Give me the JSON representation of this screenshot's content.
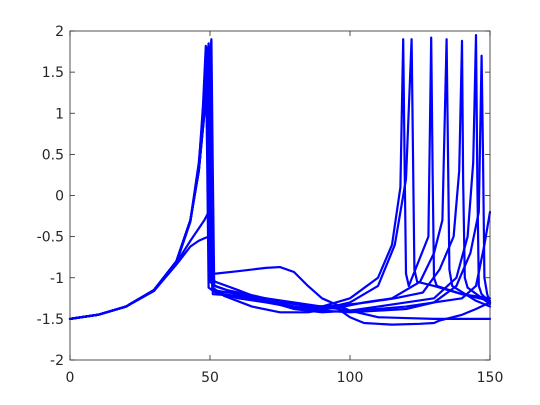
{
  "chart_data": {
    "type": "line",
    "title": "",
    "xlabel": "",
    "ylabel": "",
    "xlim": [
      0,
      150
    ],
    "ylim": [
      -2,
      2
    ],
    "xticks": [
      0,
      50,
      100,
      150
    ],
    "yticks": [
      -2,
      -1.5,
      -1,
      -0.5,
      0,
      0.5,
      1,
      1.5,
      2
    ],
    "xtick_labels": [
      "0",
      "50",
      "100",
      "150"
    ],
    "ytick_labels": [
      "-2",
      "-1.5",
      "-1",
      "-0.5",
      "0",
      "0.5",
      "1",
      "1.5",
      "2"
    ],
    "grid": false,
    "legend": "none",
    "line_color": "#0000ff",
    "series": [
      {
        "x": [
          0,
          10,
          20,
          30,
          38,
          43,
          46,
          48,
          49,
          49.5,
          50,
          52,
          60,
          70,
          80,
          90,
          100,
          110,
          116,
          120,
          122,
          122.5,
          123,
          124,
          130,
          140,
          150
        ],
        "y": [
          -1.5,
          -1.45,
          -1.35,
          -1.15,
          -0.8,
          -0.3,
          0.4,
          1.2,
          1.8,
          0.5,
          -1.05,
          -1.1,
          -1.2,
          -1.28,
          -1.35,
          -1.38,
          -1.3,
          -1.1,
          -0.6,
          0.2,
          1.9,
          0.5,
          -0.9,
          -1.05,
          -1.1,
          -1.2,
          -1.25
        ]
      },
      {
        "x": [
          0,
          10,
          20,
          30,
          38,
          43,
          46,
          47.5,
          48.5,
          49,
          49.5,
          52,
          60,
          70,
          80,
          90,
          100,
          110,
          115,
          118,
          119,
          119.5,
          120,
          121,
          128,
          129,
          129.5,
          130,
          131,
          140,
          150
        ],
        "y": [
          -1.5,
          -1.45,
          -1.35,
          -1.16,
          -0.82,
          -0.32,
          0.35,
          1.1,
          1.82,
          0.4,
          -1.12,
          -1.18,
          -1.25,
          -1.3,
          -1.36,
          -1.35,
          -1.25,
          -1.0,
          -0.6,
          0.1,
          1.9,
          0.4,
          -0.95,
          -1.1,
          -0.5,
          1.92,
          0.3,
          -1.0,
          -1.1,
          -1.2,
          -1.28
        ]
      },
      {
        "x": [
          0,
          10,
          20,
          30,
          38,
          43,
          46,
          48,
          50,
          50.3,
          50.8,
          55,
          65,
          75,
          85,
          95,
          105,
          115,
          125,
          130,
          133,
          134.5,
          135,
          135.5,
          136.5,
          145,
          150
        ],
        "y": [
          -1.5,
          -1.45,
          -1.35,
          -1.15,
          -0.8,
          -0.3,
          0.3,
          1.0,
          1.8,
          0.3,
          -1.13,
          -1.2,
          -1.26,
          -1.32,
          -1.38,
          -1.37,
          -1.3,
          -1.25,
          -1.05,
          -0.7,
          -0.3,
          1.9,
          0.5,
          -0.9,
          -1.1,
          -1.28,
          -1.35
        ]
      },
      {
        "x": [
          0,
          10,
          20,
          30,
          38,
          43,
          46,
          48,
          50.5,
          51,
          51.5,
          56,
          66,
          76,
          86,
          96,
          106,
          116,
          126,
          132,
          137,
          139,
          140,
          140.4,
          141,
          142,
          150
        ],
        "y": [
          -1.5,
          -1.45,
          -1.35,
          -1.15,
          -0.8,
          -0.3,
          0.3,
          1.0,
          1.9,
          0.3,
          -1.1,
          -1.15,
          -1.22,
          -1.3,
          -1.35,
          -1.34,
          -1.3,
          -1.25,
          -1.18,
          -0.9,
          -0.5,
          0.3,
          1.88,
          0.2,
          -1.0,
          -1.12,
          -1.32
        ]
      },
      {
        "x": [
          0,
          10,
          20,
          30,
          38,
          43,
          46,
          48,
          49,
          49.5,
          51,
          60,
          70,
          80,
          90,
          100,
          110,
          120,
          130,
          138,
          142,
          144,
          145,
          145.5,
          146,
          147,
          150
        ],
        "y": [
          -1.5,
          -1.45,
          -1.35,
          -1.15,
          -0.8,
          -0.3,
          0.35,
          1.2,
          1.6,
          0.3,
          -1.15,
          -1.2,
          -1.25,
          -1.3,
          -1.35,
          -1.4,
          -1.35,
          -1.3,
          -1.25,
          -1.0,
          -0.5,
          0.4,
          1.95,
          0.1,
          -1.1,
          -1.2,
          -1.3
        ]
      },
      {
        "x": [
          0,
          10,
          20,
          30,
          38,
          43,
          46,
          48,
          49.5,
          50,
          51,
          60,
          70,
          80,
          90,
          100,
          110,
          120,
          130,
          138,
          143,
          146,
          147,
          147.5,
          148,
          149,
          150
        ],
        "y": [
          -1.5,
          -1.45,
          -1.35,
          -1.15,
          -0.8,
          -0.3,
          0.3,
          1.0,
          1.85,
          0.4,
          -1.2,
          -1.22,
          -1.28,
          -1.35,
          -1.4,
          -1.42,
          -1.4,
          -1.38,
          -1.3,
          -1.1,
          -0.7,
          -0.2,
          1.7,
          0.5,
          -1.0,
          -1.2,
          -1.3
        ]
      },
      {
        "x": [
          0,
          10,
          20,
          30,
          38,
          43,
          46,
          48,
          49.5,
          51,
          52,
          60,
          70,
          75,
          80,
          85,
          90,
          100,
          110,
          120,
          130,
          140,
          150
        ],
        "y": [
          -1.5,
          -1.45,
          -1.35,
          -1.15,
          -0.82,
          -0.55,
          -0.4,
          -0.3,
          -0.2,
          -0.95,
          -0.95,
          -0.92,
          -0.88,
          -0.87,
          -0.93,
          -1.1,
          -1.25,
          -1.4,
          -1.48,
          -1.49,
          -1.5,
          -1.5,
          -1.5
        ]
      },
      {
        "x": [
          0,
          10,
          20,
          30,
          38,
          43,
          46,
          48,
          49.5,
          50,
          52,
          60,
          70,
          80,
          90,
          100,
          110,
          120,
          130,
          140,
          145,
          148,
          150
        ],
        "y": [
          -1.5,
          -1.45,
          -1.35,
          -1.16,
          -0.84,
          -0.62,
          -0.55,
          -0.52,
          -0.5,
          -1.0,
          -1.05,
          -1.15,
          -1.28,
          -1.38,
          -1.42,
          -1.4,
          -1.38,
          -1.35,
          -1.3,
          -1.25,
          -1.1,
          -0.6,
          -0.2
        ]
      },
      {
        "x": [
          0,
          10,
          20,
          30,
          38,
          43,
          46,
          48,
          49,
          49.5,
          51,
          55,
          65,
          75,
          85,
          95,
          100,
          105,
          115,
          125,
          130,
          132,
          140,
          145,
          150
        ],
        "y": [
          -1.5,
          -1.45,
          -1.35,
          -1.15,
          -0.8,
          -0.3,
          0.3,
          1.1,
          1.75,
          0.3,
          -1.12,
          -1.22,
          -1.35,
          -1.42,
          -1.42,
          -1.36,
          -1.48,
          -1.55,
          -1.57,
          -1.56,
          -1.55,
          -1.52,
          -1.45,
          -1.38,
          -1.3
        ]
      }
    ]
  }
}
